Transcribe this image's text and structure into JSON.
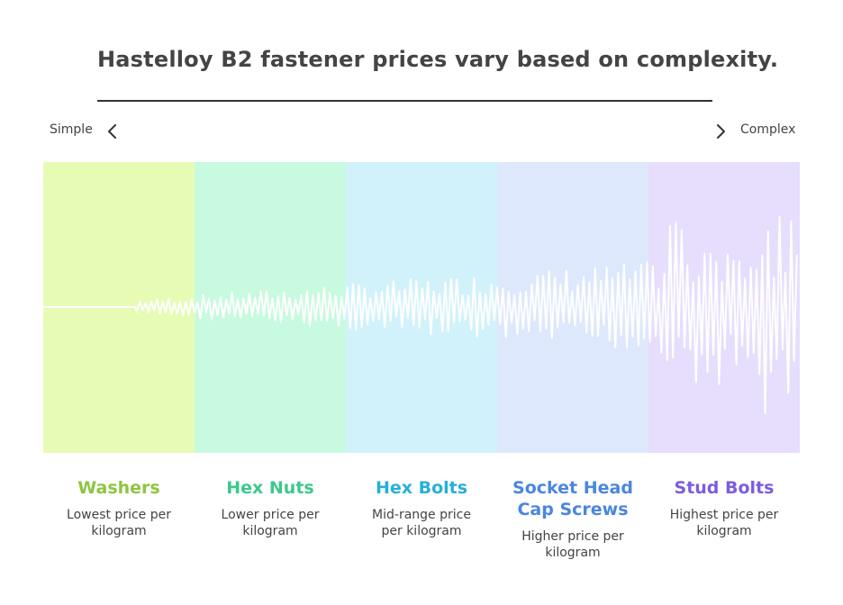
{
  "title": "Hastelloy B2 fastener prices vary based on complexity.",
  "scale": {
    "left_label": "Simple",
    "right_label": "Complex"
  },
  "categories": [
    {
      "name": "Washers",
      "description": "Lowest price per kilogram",
      "band_color": "#e6fcb5",
      "text_color": "#8cc63f"
    },
    {
      "name": "Hex Nuts",
      "description": "Lower price per kilogram",
      "band_color": "#c8fae0",
      "text_color": "#3cc98a"
    },
    {
      "name": "Hex Bolts",
      "description": "Mid-range price per kilogram",
      "band_color": "#d2f2fb",
      "text_color": "#26b0d9"
    },
    {
      "name": "Socket Head Cap Screws",
      "description": "Higher price per kilogram",
      "band_color": "#dde8fc",
      "text_color": "#4a86e0"
    },
    {
      "name": "Stud Bolts",
      "description": "Highest price per kilogram",
      "band_color": "#e6defc",
      "text_color": "#7b5ce0"
    }
  ]
}
